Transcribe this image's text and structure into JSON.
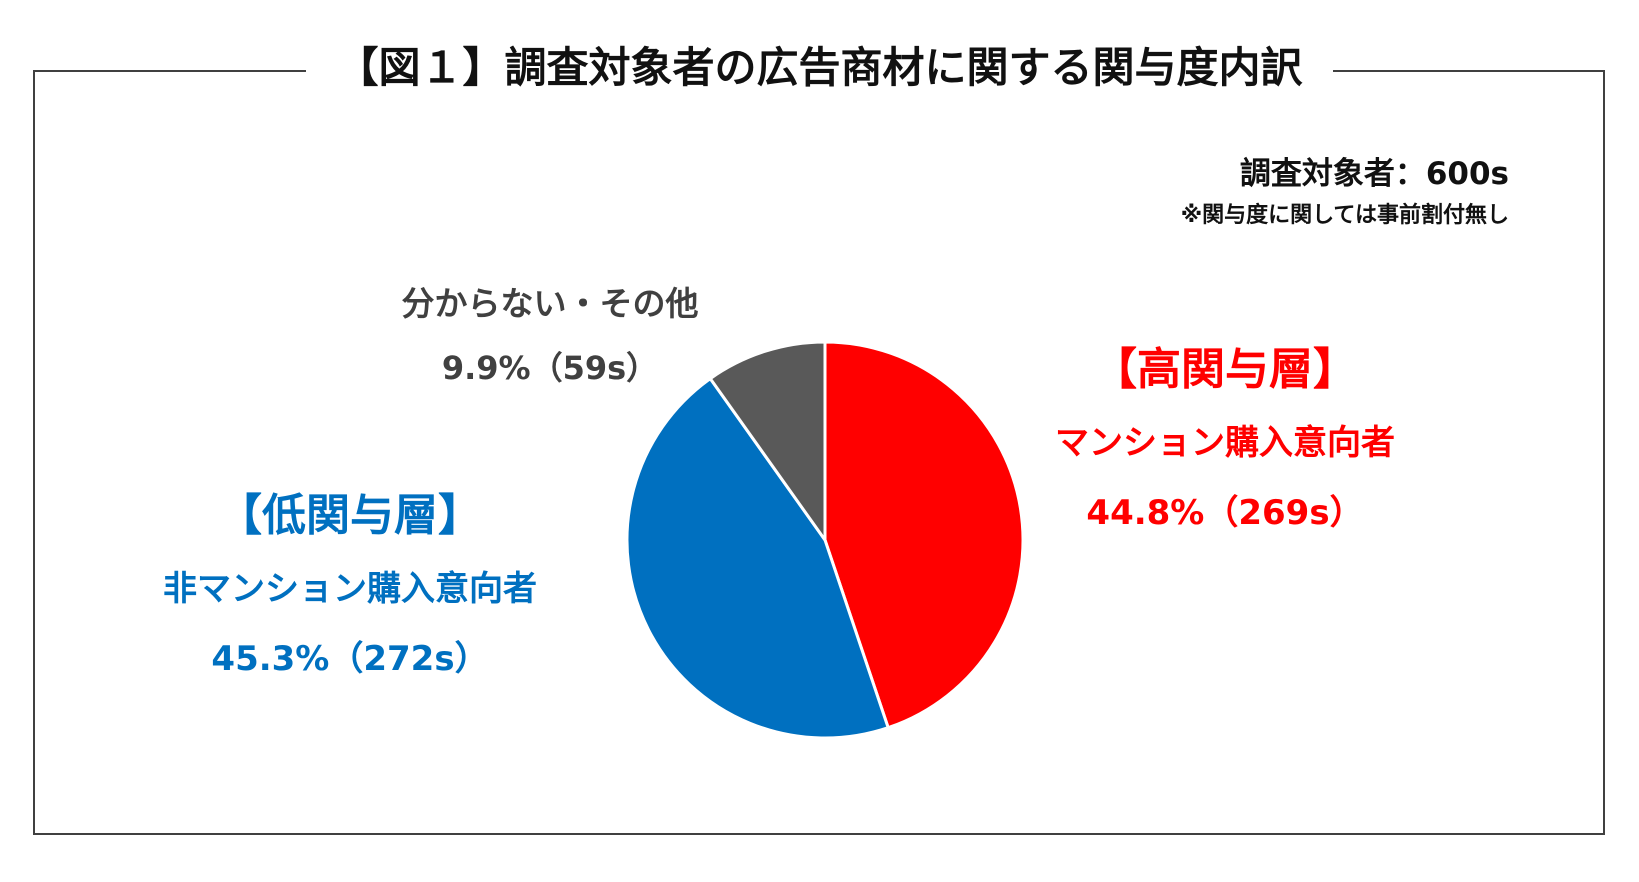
{
  "title": "【図１】調査対象者の広告商材に関する関与度内訳",
  "sample_label": "調査対象者：600s",
  "note": "※関与度に関しては事前割付無し",
  "colors": {
    "high": "#ff0000",
    "low": "#0070c0",
    "other": "#595959",
    "other_text": "#404040"
  },
  "chart_data": {
    "type": "pie",
    "total": 600,
    "slices": [
      {
        "key": "high",
        "group": "【高関与層】",
        "name": "マンション購入意向者",
        "percent": 44.8,
        "count": 269,
        "value_label": "44.8%（269s）",
        "color": "#ff0000"
      },
      {
        "key": "low",
        "group": "【低関与層】",
        "name": "非マンション購入意向者",
        "percent": 45.3,
        "count": 272,
        "value_label": "45.3%（272s）",
        "color": "#0070c0"
      },
      {
        "key": "other",
        "group": "",
        "name": "分からない・その他",
        "percent": 9.9,
        "count": 59,
        "value_label": "9.9%（59s）",
        "color": "#595959"
      }
    ]
  }
}
